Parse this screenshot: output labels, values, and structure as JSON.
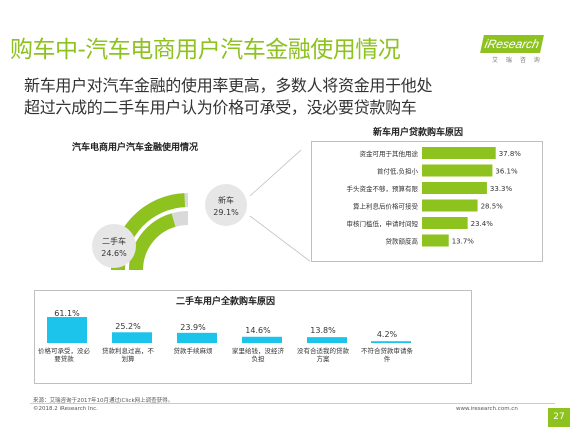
{
  "header": {
    "title": "购车中-汽车电商用户汽车金融使用情况",
    "logo_text": "iResearch",
    "logo_sub": "艾 瑞 咨 询",
    "subtitle_line1": "新车用户对汽车金融的使用率更高，多数人将资金用于他处",
    "subtitle_line2": "超过六成的二手车用户认为价格可承受，没必要贷款购车"
  },
  "colors": {
    "accent_green": "#8dc21f",
    "bar_cyan": "#1cc4ec",
    "ring_track": "#d9d9d9",
    "bubble_gray": "#e6e6e6"
  },
  "chart_data": [
    {
      "type": "pie",
      "title": "汽车电商用户汽车金融使用情况",
      "series": [
        {
          "name": "新车",
          "value": 29.1,
          "label": "29.1%"
        },
        {
          "name": "二手车",
          "value": 24.6,
          "label": "24.6%"
        }
      ]
    },
    {
      "type": "bar",
      "orientation": "horizontal",
      "title": "新车用户贷款购车原因",
      "categories": [
        "资金可用于其他用途",
        "首付低,负担小",
        "手头资金不够，预算有限",
        "算上利息后价格可接受",
        "审核门槛低，申请时间短",
        "贷款额度高"
      ],
      "values": [
        37.8,
        36.1,
        33.3,
        28.5,
        23.4,
        13.7
      ],
      "labels": [
        "37.8%",
        "36.1%",
        "33.3%",
        "28.5%",
        "23.4%",
        "13.7%"
      ]
    },
    {
      "type": "bar",
      "orientation": "vertical",
      "title": "二手车用户全款购车原因",
      "categories": [
        "价格可承受，没必要贷款",
        "贷款利息过高，不划算",
        "贷款手续麻烦",
        "家里给钱，没经济负担",
        "没有合适我的贷款方案",
        "不符合贷款审请条件"
      ],
      "values": [
        61.1,
        25.2,
        23.9,
        14.6,
        13.8,
        4.2
      ],
      "labels": [
        "61.1%",
        "25.2%",
        "23.9%",
        "14.6%",
        "13.8%",
        "4.2%"
      ]
    }
  ],
  "footer": {
    "source": "来源：艾瑞咨询于2017年10月通过iClick网上调查获得。",
    "copyright": "©2018.2 iResearch Inc.",
    "url": "www.iresearch.com.cn",
    "page": "27"
  }
}
